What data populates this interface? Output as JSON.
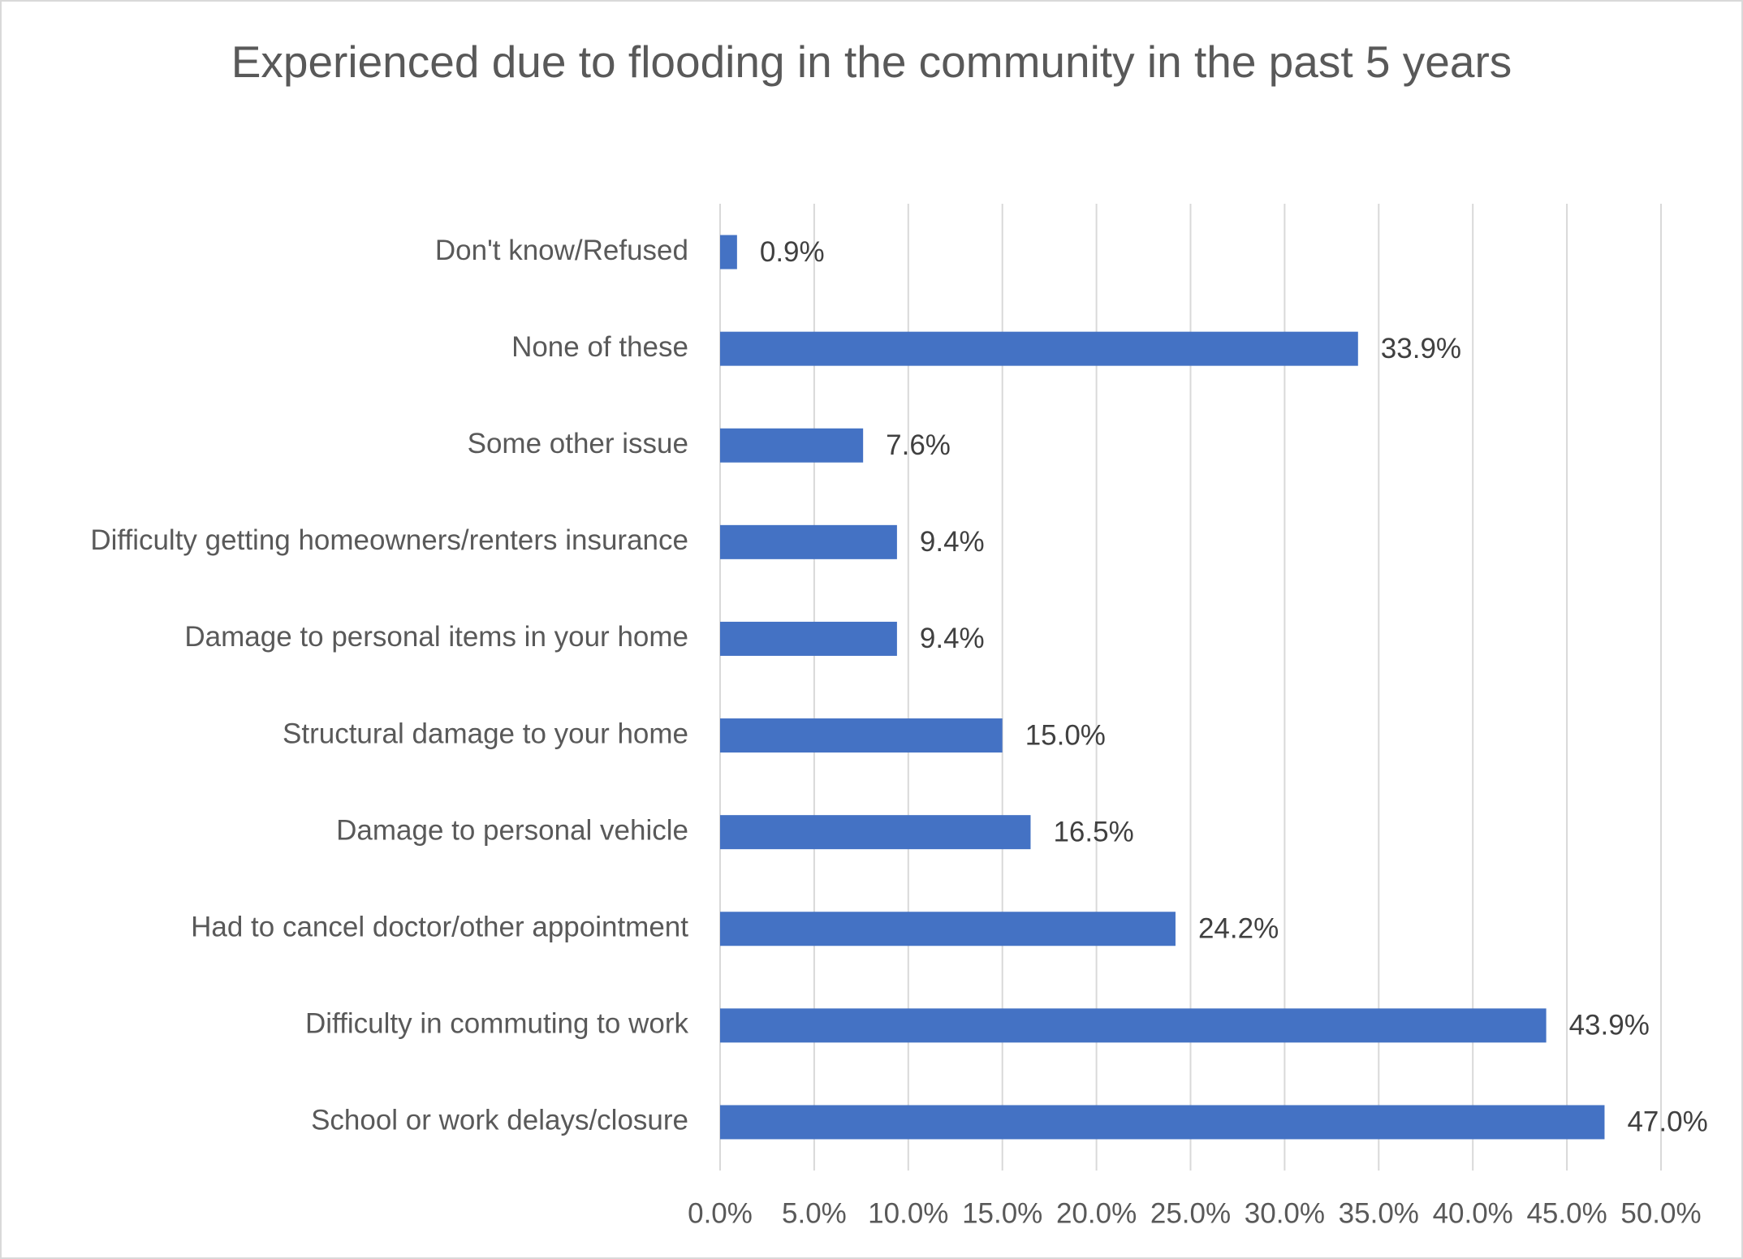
{
  "chart_data": {
    "type": "hbar",
    "title": "Experienced due to flooding in the community in the past 5 years",
    "categories": [
      "Don't know/Refused",
      "None of these",
      "Some other issue",
      "Difficulty getting homeowners/renters insurance",
      "Damage to personal items in your home",
      "Structural damage to your home",
      "Damage to personal vehicle",
      "Had to cancel doctor/other appointment",
      "Difficulty in commuting to work",
      "School or work delays/closure"
    ],
    "values": [
      0.9,
      33.9,
      7.6,
      9.4,
      9.4,
      15.0,
      16.5,
      24.2,
      43.9,
      47.0
    ],
    "value_labels": [
      "0.9%",
      "33.9%",
      "7.6%",
      "9.4%",
      "9.4%",
      "15.0%",
      "16.5%",
      "24.2%",
      "43.9%",
      "47.0%"
    ],
    "color": "#4472c4",
    "xlim": [
      0,
      50
    ],
    "xticks": [
      {
        "value": 0,
        "label": "0.0%"
      },
      {
        "value": 5,
        "label": "5.0%"
      },
      {
        "value": 10,
        "label": "10.0%"
      },
      {
        "value": 15,
        "label": "15.0%"
      },
      {
        "value": 20,
        "label": "20.0%"
      },
      {
        "value": 25,
        "label": "25.0%"
      },
      {
        "value": 30,
        "label": "30.0%"
      },
      {
        "value": 35,
        "label": "35.0%"
      },
      {
        "value": 40,
        "label": "40.0%"
      },
      {
        "value": 45,
        "label": "45.0%"
      },
      {
        "value": 50,
        "label": "50.0%"
      }
    ],
    "grid": true
  }
}
